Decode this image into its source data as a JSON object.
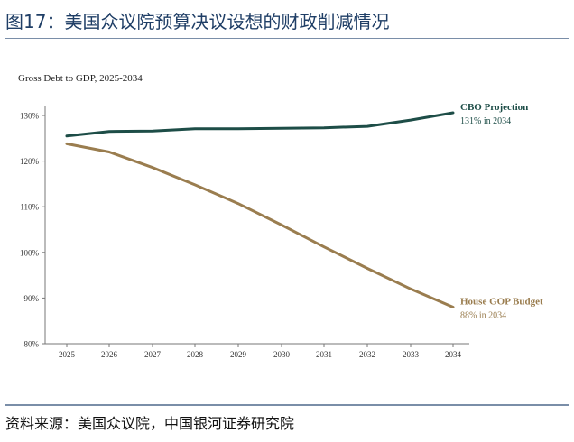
{
  "figure": {
    "title": "图17：美国众议院预算决议设想的财政削减情况",
    "source": "资料来源：美国众议院，中国银河证券研究院"
  },
  "chart_data": {
    "type": "line",
    "title": "Gross Debt to GDP, 2025-2034",
    "x": [
      2025,
      2026,
      2027,
      2028,
      2029,
      2030,
      2031,
      2032,
      2033,
      2034
    ],
    "x_tick_labels": [
      "2025",
      "2026",
      "2027",
      "2028",
      "2029",
      "2030",
      "2031",
      "2032",
      "2033",
      "2034"
    ],
    "ylim": [
      80,
      130
    ],
    "y_ticks": [
      80,
      90,
      100,
      110,
      120,
      130
    ],
    "y_tick_labels": [
      "80%",
      "90%",
      "100%",
      "110%",
      "120%",
      "130%"
    ],
    "grid": false,
    "series": [
      {
        "name": "CBO Projection",
        "annotation": "131% in 2034",
        "color": "#1d4d47",
        "values": [
          125.5,
          126.5,
          126.6,
          127.1,
          127.1,
          127.2,
          127.3,
          127.6,
          129.0,
          130.6
        ]
      },
      {
        "name": "House GOP Budget",
        "annotation": "88% in 2034",
        "color": "#9a7d4f",
        "values": [
          123.8,
          122.0,
          118.6,
          114.8,
          110.7,
          106.0,
          101.2,
          96.5,
          92.0,
          88.0
        ]
      }
    ]
  }
}
